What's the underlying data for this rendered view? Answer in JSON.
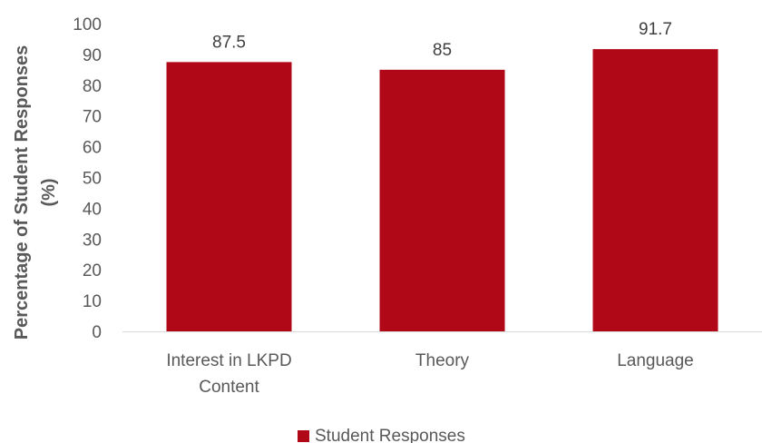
{
  "chart_data": {
    "type": "bar",
    "categories": [
      "Interest in LKPD Content",
      "Theory",
      "Language"
    ],
    "category_lines": [
      [
        "Interest in LKPD",
        "Content"
      ],
      [
        "Theory"
      ],
      [
        "Language"
      ]
    ],
    "series": [
      {
        "name": "Student Responses",
        "values": [
          87.5,
          85,
          91.7
        ],
        "color": "#b10818"
      }
    ],
    "data_labels": [
      "87.5",
      "85",
      "91.7"
    ],
    "ylabel": "Percentage of Student Responses (%)",
    "ylabel_lines": [
      "Percentage of Student Responses",
      "(%)"
    ],
    "ylim": [
      0,
      100
    ],
    "yticks": [
      0,
      10,
      20,
      30,
      40,
      50,
      60,
      70,
      80,
      90,
      100
    ],
    "grid": false,
    "legend_position": "bottom"
  }
}
